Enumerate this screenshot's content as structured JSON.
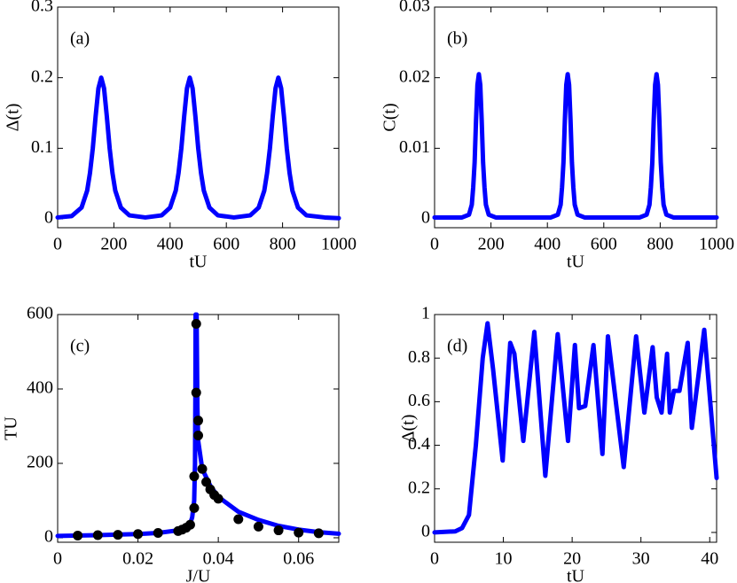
{
  "chart_data": [
    {
      "type": "line",
      "annotation": "(a)",
      "x_label": "tU",
      "y_label": "Δ(t)",
      "xlim": [
        0,
        1000
      ],
      "ylim": [
        -0.0125,
        0.3
      ],
      "xticks": [
        0,
        200,
        400,
        600,
        800,
        1000
      ],
      "yticks": [
        0,
        0.1,
        0.2,
        0.3
      ],
      "series": [
        {
          "color": "#0000ff",
          "x": [
            0,
            50,
            85,
            105,
            115,
            125,
            135,
            145,
            155,
            165,
            175,
            185,
            195,
            205,
            225,
            255,
            312,
            370,
            400,
            420,
            430,
            440,
            450,
            460,
            470,
            480,
            490,
            500,
            510,
            520,
            540,
            570,
            627,
            685,
            715,
            735,
            745,
            755,
            765,
            775,
            785,
            795,
            805,
            815,
            825,
            835,
            855,
            885,
            950,
            1000
          ],
          "values": [
            0.002,
            0.004,
            0.016,
            0.04,
            0.065,
            0.1,
            0.145,
            0.185,
            0.2,
            0.185,
            0.145,
            0.1,
            0.065,
            0.04,
            0.016,
            0.005,
            0.002,
            0.005,
            0.016,
            0.04,
            0.065,
            0.1,
            0.145,
            0.185,
            0.2,
            0.185,
            0.145,
            0.1,
            0.065,
            0.04,
            0.016,
            0.005,
            0.002,
            0.005,
            0.016,
            0.04,
            0.065,
            0.1,
            0.145,
            0.185,
            0.2,
            0.185,
            0.145,
            0.1,
            0.065,
            0.04,
            0.016,
            0.005,
            0.002,
            0.001
          ]
        }
      ]
    },
    {
      "type": "line",
      "annotation": "(b)",
      "x_label": "tU",
      "y_label": "C(t)",
      "xlim": [
        0,
        1000
      ],
      "ylim": [
        -0.00125,
        0.03
      ],
      "xticks": [
        0,
        200,
        400,
        600,
        800,
        1000
      ],
      "yticks": [
        0,
        0.01,
        0.02,
        0.03
      ],
      "series": [
        {
          "color": "#0000ff",
          "x": [
            0,
            97,
            122,
            132,
            137,
            142,
            147,
            152,
            157,
            162,
            167,
            172,
            177,
            182,
            192,
            217,
            315,
            412,
            437,
            447,
            452,
            457,
            462,
            467,
            472,
            477,
            482,
            487,
            492,
            497,
            507,
            532,
            630,
            727,
            752,
            762,
            767,
            772,
            777,
            782,
            787,
            792,
            797,
            802,
            807,
            812,
            822,
            847,
            1000
          ],
          "values": [
            0.0002,
            0.0002,
            0.0006,
            0.002,
            0.0045,
            0.008,
            0.014,
            0.019,
            0.0205,
            0.019,
            0.014,
            0.008,
            0.0045,
            0.002,
            0.0006,
            0.0002,
            0.0002,
            0.0002,
            0.0006,
            0.002,
            0.0045,
            0.008,
            0.014,
            0.019,
            0.0205,
            0.019,
            0.014,
            0.008,
            0.0045,
            0.002,
            0.0006,
            0.0002,
            0.0002,
            0.0002,
            0.0006,
            0.002,
            0.0045,
            0.008,
            0.014,
            0.019,
            0.0205,
            0.019,
            0.014,
            0.008,
            0.0045,
            0.002,
            0.0006,
            0.0002,
            0.0002
          ]
        }
      ]
    },
    {
      "type": "line",
      "annotation": "(c)",
      "x_label": "J/U",
      "y_label": "TU",
      "xlim": [
        0,
        0.07
      ],
      "ylim": [
        -12,
        600
      ],
      "xticks": [
        0,
        0.02,
        0.04,
        0.06
      ],
      "yticks": [
        0,
        200,
        400,
        600
      ],
      "series": [
        {
          "type": "line",
          "color": "#0000ff",
          "x": [
            0,
            0.01,
            0.02,
            0.025,
            0.03,
            0.032,
            0.033,
            0.0335,
            0.034,
            0.0342,
            0.0343,
            0.03435,
            0.0345,
            0.0346,
            0.0348,
            0.035,
            0.036,
            0.038,
            0.04,
            0.045,
            0.05,
            0.055,
            0.06,
            0.065,
            0.07
          ],
          "values": [
            5,
            7,
            10,
            13,
            20,
            28,
            38,
            55,
            100,
            200,
            400,
            600,
            null,
            600,
            350,
            260,
            185,
            140,
            110,
            70,
            48,
            32,
            22,
            15,
            11
          ]
        },
        {
          "type": "scatter",
          "color": "#000000",
          "x": [
            0.005,
            0.01,
            0.015,
            0.02,
            0.025,
            0.03,
            0.031,
            0.032,
            0.033,
            0.034,
            0.034,
            0.0345,
            0.0345,
            0.035,
            0.035,
            0.036,
            0.037,
            0.038,
            0.039,
            0.04,
            0.045,
            0.05,
            0.055,
            0.06,
            0.065
          ],
          "values": [
            6,
            7,
            8,
            10,
            13,
            18,
            22,
            27,
            35,
            80,
            165,
            575,
            390,
            315,
            275,
            185,
            150,
            130,
            115,
            105,
            50,
            30,
            20,
            14,
            12
          ]
        }
      ]
    },
    {
      "type": "line",
      "annotation": "(d)",
      "x_label": "tU",
      "y_label": "Δ(t)",
      "xlim": [
        0,
        41
      ],
      "ylim": [
        -0.045,
        1
      ],
      "xticks": [
        0,
        10,
        20,
        30,
        40
      ],
      "yticks": [
        0,
        0.2,
        0.4,
        0.6,
        0.8,
        1
      ],
      "series": [
        {
          "color": "#0000ff",
          "x": [
            0,
            3,
            4,
            5,
            6,
            7,
            7.7,
            8.5,
            9.9,
            11,
            11.6,
            12.9,
            14.5,
            16.1,
            17.9,
            19.4,
            20.4,
            21,
            21.9,
            23.1,
            24.4,
            25.2,
            27.5,
            29.3,
            30.5,
            31.7,
            32.3,
            33,
            33.8,
            34.2,
            34.8,
            35.6,
            36.8,
            37.4,
            39.2,
            41
          ],
          "values": [
            0,
            0.005,
            0.02,
            0.08,
            0.4,
            0.8,
            0.96,
            0.75,
            0.33,
            0.87,
            0.82,
            0.42,
            0.92,
            0.26,
            0.91,
            0.42,
            0.86,
            0.57,
            0.58,
            0.86,
            0.36,
            0.9,
            0.3,
            0.9,
            0.55,
            0.85,
            0.62,
            0.55,
            0.82,
            0.55,
            0.65,
            0.65,
            0.87,
            0.48,
            0.93,
            0.25
          ]
        }
      ]
    }
  ]
}
